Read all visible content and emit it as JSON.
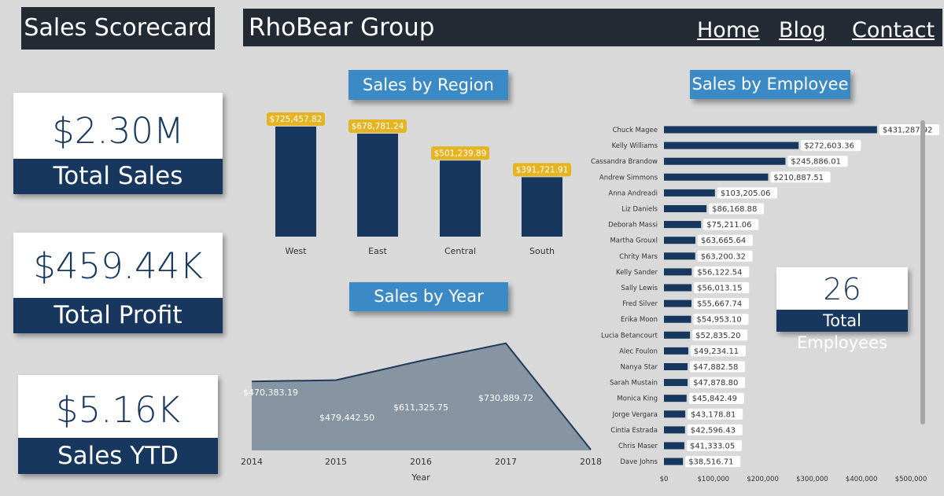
{
  "header": {
    "title": "Sales Scorecard",
    "brand": "RhoBear Group",
    "nav": [
      "Home",
      "Blog",
      "Contact"
    ]
  },
  "kpis": [
    {
      "value": "$2.30M",
      "label": "Total Sales"
    },
    {
      "value": "$459.44K",
      "label": "Total Profit"
    },
    {
      "value": "$5.16K",
      "label": "Sales YTD"
    }
  ],
  "employees_card": {
    "value": "26",
    "label": "Total Employees"
  },
  "colors": {
    "navy": "#17375e",
    "accent_blue": "#3b8ac6",
    "label_gold": "#e6b422",
    "area_fill": "#8795a3",
    "background": "#d9d9d9"
  },
  "chart_data": [
    {
      "type": "bar",
      "title": "Sales by Region",
      "categories": [
        "West",
        "East",
        "Central",
        "South"
      ],
      "values": [
        725457.82,
        678781.24,
        501239.89,
        391721.91
      ],
      "labels": [
        "$725,457.82",
        "$678,781.24",
        "$501,239.89",
        "$391,721.91"
      ],
      "ylim": [
        0,
        800000
      ]
    },
    {
      "type": "area",
      "title": "Sales by Year",
      "xlabel": "Year",
      "x": [
        "2014",
        "2015",
        "2016",
        "2017",
        "2018"
      ],
      "values": [
        470383.19,
        479442.5,
        611325.75,
        730889.72,
        5160
      ],
      "labels": [
        "$470,383.19",
        "$479,442.50",
        "$611,325.75",
        "$730,889.72",
        ""
      ],
      "ylim": [
        0,
        740000
      ]
    },
    {
      "type": "bar",
      "orientation": "horizontal",
      "title": "Sales by Employee",
      "categories": [
        "Chuck Magee",
        "Kelly Williams",
        "Cassandra Brandow",
        "Andrew Simmons",
        "Anna Andreadi",
        "Liz Daniels",
        "Deborah Massi",
        "Martha Grouxl",
        "Chrity Mars",
        "Kelly Sander",
        "Sally Lewis",
        "Fred Silver",
        "Erika Moon",
        "Lucia Betancourt",
        "Alec Foulon",
        "Nanya Star",
        "Sarah Mustain",
        "Monica King",
        "Jorge Vergara",
        "Cintia Estrada",
        "Chris Maser",
        "Dave Johns"
      ],
      "values": [
        431287.92,
        272603.36,
        245886.01,
        210887.51,
        103205.06,
        86168.88,
        75211.06,
        63665.64,
        63200.32,
        56122.54,
        56013.15,
        55667.74,
        54953.1,
        52835.2,
        49234.11,
        47882.58,
        47878.8,
        45842.49,
        43178.81,
        42596.43,
        41333.05,
        38516.71
      ],
      "labels": [
        "$431,287.92",
        "$272,603.36",
        "$245,886.01",
        "$210,887.51",
        "$103,205.06",
        "$86,168.88",
        "$75,211.06",
        "$63,665.64",
        "$63,200.32",
        "$56,122.54",
        "$56,013.15",
        "$55,667.74",
        "$54,953.10",
        "$52,835.20",
        "$49,234.11",
        "$47,882.58",
        "$47,878.80",
        "$45,842.49",
        "$43,178.81",
        "$42,596.43",
        "$41,333.05",
        "$38,516.71"
      ],
      "xticks": [
        "$0",
        "$100,000",
        "$200,000",
        "$300,000",
        "$400,000",
        "$500,000"
      ],
      "xlim": [
        0,
        500000
      ]
    }
  ]
}
